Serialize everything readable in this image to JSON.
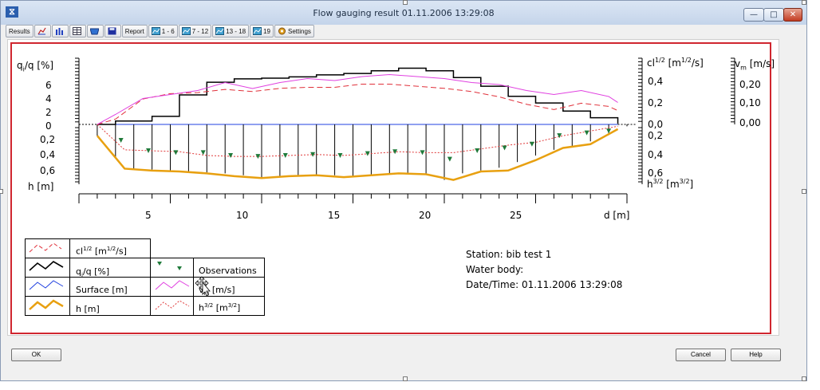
{
  "window": {
    "title": "Flow gauging result 01.11.2006 13:29:08",
    "min_glyph": "—",
    "max_glyph": "□",
    "close_glyph": "✕",
    "app_glyph": "⧖"
  },
  "toolbar": {
    "results": "Results",
    "report": "Report",
    "range_1": "1 - 6",
    "range_2": "7 - 12",
    "range_3": "13 - 18",
    "range_4": "19",
    "settings": "Settings",
    "icons": [
      "area-chart-icon",
      "bar-chart-icon",
      "table-icon",
      "cross-section-icon",
      "save-icon",
      "report-icon",
      "chart-icon",
      "settings-icon"
    ]
  },
  "chart": {
    "left_axis_label_main": "q",
    "left_axis_label_sub": "i",
    "left_axis_label_rest": "/q [%]",
    "left_upper_ticks": [
      "6",
      "4",
      "2",
      "0"
    ],
    "left_lower_ticks": [
      "0,2",
      "0,4",
      "0,6"
    ],
    "left_bottom_label": "h [m]",
    "right1_label_main": "cl",
    "right1_label_sup1": "1/2",
    "right1_label_mid": " [m",
    "right1_label_sup2": "1/2",
    "right1_label_end": "/s]",
    "right1_upper_ticks": [
      "0,4",
      "0,2",
      "0,0"
    ],
    "right1_lower_ticks": [
      "0,2",
      "0,4",
      "0,6"
    ],
    "right1_bottom_main": "h",
    "right1_bottom_sup1": "3/2",
    "right1_bottom_mid": " [m",
    "right1_bottom_sup2": "3/2",
    "right1_bottom_end": "]",
    "right2_label_main": "v",
    "right2_label_sub": "m",
    "right2_label_rest": " [m/s]",
    "right2_ticks": [
      "0,20",
      "0,10",
      "0,00"
    ],
    "x_ticks": [
      "5",
      "10",
      "15",
      "20",
      "25"
    ],
    "x_label": "d [m]"
  },
  "chart_data": {
    "type": "line",
    "xlabel": "d [m]",
    "xlim": [
      0,
      30
    ],
    "series": [
      {
        "name": "q",
        "x": [
          1.0,
          2.0,
          4.0,
          5.5,
          7.0,
          8.5,
          10.0,
          11.5,
          13.0,
          14.5,
          16.0,
          17.5,
          19.0,
          20.5,
          22.0,
          23.5,
          25.0,
          26.5,
          28.0,
          29.5
        ],
        "values": [
          0.0,
          0.5,
          1.2,
          4.4,
          6.3,
          6.8,
          6.9,
          7.1,
          7.4,
          7.6,
          8.0,
          8.4,
          8.0,
          7.0,
          5.7,
          4.2,
          3.2,
          2.0,
          1.0,
          0.1
        ]
      },
      {
        "name": "cl1",
        "x": [
          1.0,
          2.0,
          3.5,
          5,
          6.5,
          8,
          9.5,
          11,
          12.5,
          14,
          15.5,
          17,
          18.5,
          20,
          21.5,
          23,
          24.5,
          26,
          27.5,
          29,
          29.5
        ],
        "values": [
          0.0,
          0.05,
          0.24,
          0.29,
          0.3,
          0.33,
          0.31,
          0.34,
          0.35,
          0.35,
          0.38,
          0.38,
          0.36,
          0.34,
          0.31,
          0.26,
          0.19,
          0.14,
          0.2,
          0.17,
          0.13
        ]
      },
      {
        "name": "vm",
        "x": [
          1.0,
          2.0,
          3.5,
          5,
          6.5,
          8,
          9.5,
          11,
          12.5,
          14,
          15.5,
          17,
          18.5,
          20,
          21.5,
          23,
          24.5,
          26,
          27.5,
          29,
          29.5
        ],
        "values": [
          0.0,
          0.05,
          0.13,
          0.15,
          0.17,
          0.21,
          0.18,
          0.21,
          0.23,
          0.22,
          0.24,
          0.25,
          0.24,
          0.23,
          0.21,
          0.2,
          0.17,
          0.15,
          0.17,
          0.14,
          0.11
        ]
      },
      {
        "name": "h32",
        "x": [
          1.0,
          2.5,
          4,
          5.5,
          7,
          8.5,
          10,
          11.5,
          13,
          14.5,
          16,
          17.5,
          19,
          20.5,
          22,
          23.5,
          25,
          26.5,
          28,
          29.5
        ],
        "values": [
          0.0,
          0.27,
          0.28,
          0.29,
          0.33,
          0.34,
          0.34,
          0.33,
          0.32,
          0.33,
          0.31,
          0.29,
          0.3,
          0.3,
          0.26,
          0.22,
          0.19,
          0.12,
          0.07,
          0.02
        ]
      },
      {
        "name": "h",
        "x": [
          1.0,
          2.5,
          4,
          5.5,
          7,
          8.5,
          10,
          11.5,
          13,
          14.5,
          16,
          17.5,
          19,
          20.5,
          22,
          23.5,
          25,
          26.5,
          28,
          29.5
        ],
        "values": [
          0.12,
          0.47,
          0.49,
          0.5,
          0.52,
          0.55,
          0.57,
          0.55,
          0.54,
          0.56,
          0.54,
          0.52,
          0.53,
          0.59,
          0.5,
          0.49,
          0.38,
          0.25,
          0.21,
          0.05
        ]
      },
      {
        "name": "obs",
        "x": [
          2.3,
          3.8,
          5.3,
          6.8,
          8.3,
          9.8,
          11.3,
          12.8,
          14.3,
          15.8,
          17.3,
          18.8,
          20.3,
          21.8,
          23.3,
          24.8,
          26.3,
          27.8,
          29.0
        ],
        "values": [
          0.17,
          0.28,
          0.3,
          0.3,
          0.33,
          0.34,
          0.33,
          0.32,
          0.33,
          0.31,
          0.29,
          0.3,
          0.37,
          0.28,
          0.25,
          0.21,
          0.12,
          0.09,
          0.07
        ]
      }
    ],
    "verticals_x": [
      1,
      2,
      3,
      4,
      5,
      6,
      7,
      8,
      9,
      10,
      11,
      12,
      13,
      14,
      15,
      16,
      17,
      18,
      19,
      20,
      21,
      22,
      23,
      24,
      25,
      26,
      27,
      28,
      29,
      30
    ],
    "verticals_h": [
      0.12,
      0.35,
      0.47,
      0.48,
      0.49,
      0.5,
      0.51,
      0.52,
      0.54,
      0.57,
      0.56,
      0.55,
      0.55,
      0.54,
      0.56,
      0.55,
      0.53,
      0.52,
      0.53,
      0.59,
      0.52,
      0.49,
      0.46,
      0.4,
      0.33,
      0.27,
      0.23,
      0.18,
      0.1,
      0.02
    ]
  },
  "legend": {
    "cl_main": "cl",
    "cl_sup1": "1/2",
    "cl_mid": " [m",
    "cl_sup2": "1/2",
    "cl_end": "/s]",
    "qq_main": "q",
    "qq_sub": "i",
    "qq_end": "/q [%]",
    "surface": "Surface [m]",
    "h": "h [m]",
    "observations": "Observations",
    "vm_main": "v",
    "vm_sub": "m",
    "vm_end": " [m/s]",
    "h32_main": "h",
    "h32_sup1": "3/2",
    "h32_mid": " [m",
    "h32_sup2": "3/2",
    "h32_end": "]"
  },
  "info": {
    "station": "Station: bib test 1",
    "water_body": "Water body:",
    "datetime": "Date/Time: 01.11.2006 13:29:08"
  },
  "buttons": {
    "ok": "OK",
    "cancel": "Cancel",
    "help": "Help"
  },
  "colors": {
    "q": "#000000",
    "cl": "#e0303a",
    "vm": "#e040e0",
    "h32": "#e03a3a",
    "h": "#e8a010",
    "surface": "#2040e0",
    "obs": "#1f7a3a",
    "frame": "#d0262f"
  }
}
